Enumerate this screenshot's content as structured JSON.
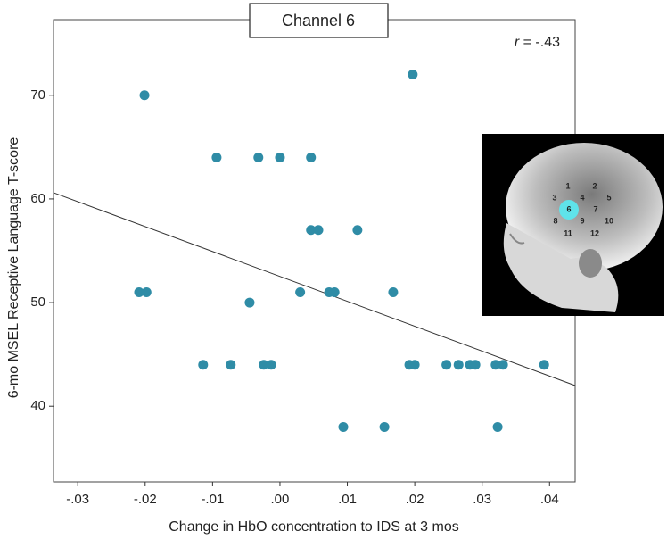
{
  "chart_data": {
    "type": "scatter",
    "title": "Channel 6",
    "xlabel": "Change in HbO concentration to IDS at 3 mos",
    "ylabel": "6-mo MSEL Receptive Language T-score",
    "stat_symbol": "r",
    "stat_text": " = -.43",
    "xlim": [
      -0.0336,
      0.0438
    ],
    "ylim": [
      32.7,
      77.3
    ],
    "xticks": [
      {
        "value": -0.03,
        "label": "-.03"
      },
      {
        "value": -0.02,
        "label": "-.02"
      },
      {
        "value": -0.01,
        "label": "-.01"
      },
      {
        "value": 0,
        "label": ".00"
      },
      {
        "value": 0.01,
        "label": ".01"
      },
      {
        "value": 0.02,
        "label": ".02"
      },
      {
        "value": 0.03,
        "label": ".03"
      },
      {
        "value": 0.04,
        "label": ".04"
      }
    ],
    "yticks": [
      40,
      50,
      60,
      70
    ],
    "series": [
      {
        "color": "#2f8ca6",
        "x": [
          -0.0201,
          0.0197,
          -0.0094,
          -0.0032,
          0.0,
          0.0046,
          0.0046,
          0.0057,
          0.0115,
          -0.0209,
          -0.0198,
          0.003,
          0.0073,
          0.0081,
          0.0168,
          -0.0045,
          -0.0114,
          -0.0073,
          -0.0024,
          -0.0013,
          0.0192,
          0.02,
          0.0247,
          0.0265,
          0.0282,
          0.029,
          0.032,
          0.0331,
          0.0392,
          0.0094,
          0.0155,
          0.0323
        ],
        "y": [
          70,
          72,
          64,
          64,
          64,
          64,
          57,
          57,
          57,
          51,
          51,
          51,
          51,
          51,
          51,
          50,
          44,
          44,
          44,
          44,
          44,
          44,
          44,
          44,
          44,
          44,
          44,
          44,
          44,
          38,
          38,
          38
        ]
      }
    ],
    "trend_line": {
      "color": "#333333",
      "x": [
        -0.0336,
        0.0438
      ],
      "y": [
        60.6,
        42.0
      ]
    },
    "inset": {
      "channels": [
        "1",
        "2",
        "3",
        "4",
        "5",
        "6",
        "7",
        "8",
        "9",
        "10",
        "11",
        "12"
      ]
    }
  }
}
